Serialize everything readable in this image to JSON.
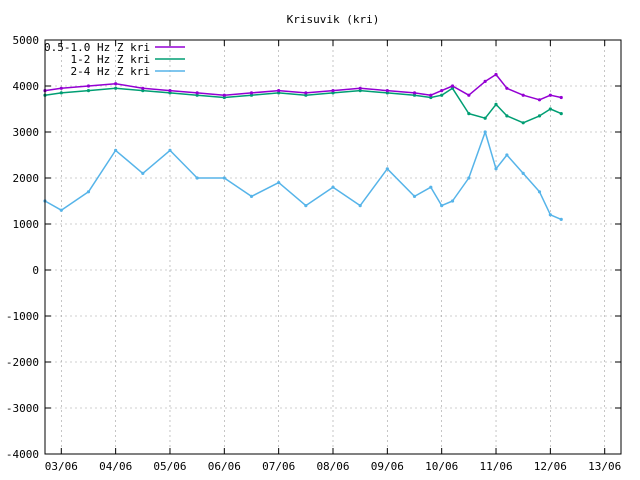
{
  "chart_data": {
    "type": "line",
    "title": "Krisuvik (kri)",
    "xlabel": "",
    "ylabel": "",
    "ylim": [
      -4000,
      5000
    ],
    "yticks": [
      -4000,
      -3000,
      -2000,
      -1000,
      0,
      1000,
      2000,
      3000,
      4000,
      5000
    ],
    "xlim": [
      2.7,
      13.3
    ],
    "xticks": [
      {
        "label": "03/06",
        "value": 3
      },
      {
        "label": "04/06",
        "value": 4
      },
      {
        "label": "05/06",
        "value": 5
      },
      {
        "label": "06/06",
        "value": 6
      },
      {
        "label": "07/06",
        "value": 7
      },
      {
        "label": "08/06",
        "value": 8
      },
      {
        "label": "09/06",
        "value": 9
      },
      {
        "label": "10/06",
        "value": 10
      },
      {
        "label": "11/06",
        "value": 11
      },
      {
        "label": "12/06",
        "value": 12
      },
      {
        "label": "13/06",
        "value": 13
      }
    ],
    "grid": true,
    "legend_position": "top-left",
    "series": [
      {
        "name": "0.5-1.0 Hz Z kri",
        "color": "#9400d3",
        "x": [
          2.7,
          3.0,
          3.5,
          4.0,
          4.5,
          5.0,
          5.5,
          6.0,
          6.5,
          7.0,
          7.5,
          8.0,
          8.5,
          9.0,
          9.5,
          9.8,
          10.0,
          10.2,
          10.5,
          10.8,
          11.0,
          11.2,
          11.5,
          11.8,
          12.0,
          12.2
        ],
        "values": [
          3900,
          3950,
          4000,
          4050,
          3950,
          3900,
          3850,
          3800,
          3850,
          3900,
          3850,
          3900,
          3950,
          3900,
          3850,
          3800,
          3900,
          4000,
          3800,
          4100,
          4250,
          3950,
          3800,
          3700,
          3800,
          3750
        ]
      },
      {
        "name": "1-2 Hz Z kri",
        "color": "#009e73",
        "x": [
          2.7,
          3.0,
          3.5,
          4.0,
          4.5,
          5.0,
          5.5,
          6.0,
          6.5,
          7.0,
          7.5,
          8.0,
          8.5,
          9.0,
          9.5,
          9.8,
          10.0,
          10.2,
          10.5,
          10.8,
          11.0,
          11.2,
          11.5,
          11.8,
          12.0,
          12.2
        ],
        "values": [
          3800,
          3850,
          3900,
          3950,
          3900,
          3850,
          3800,
          3750,
          3800,
          3850,
          3800,
          3850,
          3900,
          3850,
          3800,
          3750,
          3800,
          3950,
          3400,
          3300,
          3600,
          3350,
          3200,
          3350,
          3500,
          3400
        ]
      },
      {
        "name": "2-4 Hz Z kri",
        "color": "#56b4e9",
        "x": [
          2.7,
          3.0,
          3.5,
          4.0,
          4.5,
          5.0,
          5.5,
          6.0,
          6.5,
          7.0,
          7.5,
          8.0,
          8.5,
          9.0,
          9.5,
          9.8,
          10.0,
          10.2,
          10.5,
          10.8,
          11.0,
          11.2,
          11.5,
          11.8,
          12.0,
          12.2
        ],
        "values": [
          1500,
          1300,
          1700,
          2600,
          2100,
          2600,
          2000,
          2000,
          1600,
          1900,
          1400,
          1800,
          1400,
          2200,
          1600,
          1800,
          1400,
          1500,
          2000,
          3000,
          2200,
          2500,
          2100,
          1700,
          1200,
          1100
        ]
      }
    ]
  }
}
